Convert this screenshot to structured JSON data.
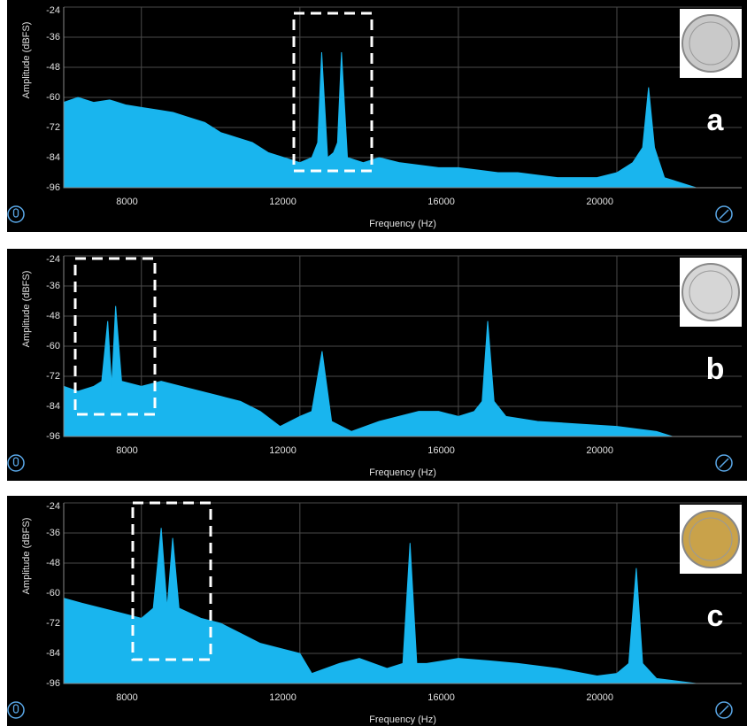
{
  "chart_data": [
    {
      "type": "area",
      "annotation": "a",
      "xlabel": "Frequency (Hz)",
      "ylabel": "Amplitude (dBFS)",
      "grid": true,
      "xlim": [
        6040,
        23150
      ],
      "ylim": [
        -96,
        -24
      ],
      "xticks": [
        8000,
        12000,
        16000,
        20000
      ],
      "yticks": [
        -24,
        -36,
        -48,
        -60,
        -72,
        -84,
        -96
      ],
      "x": [
        6040,
        6400,
        6800,
        7200,
        7600,
        8000,
        8400,
        8800,
        9200,
        9600,
        10000,
        10400,
        10800,
        11200,
        11600,
        12000,
        12300,
        12450,
        12550,
        12700,
        12850,
        12950,
        13050,
        13200,
        13600,
        14000,
        14500,
        15000,
        15500,
        16000,
        16500,
        17000,
        17500,
        18000,
        18500,
        19000,
        19500,
        20000,
        20400,
        20650,
        20800,
        20950,
        21200,
        21600,
        22000,
        22500,
        23150
      ],
      "series": [
        {
          "color": "#19b5ee",
          "values": [
            -62,
            -60,
            -62,
            -61,
            -63,
            -64,
            -65,
            -66,
            -68,
            -70,
            -74,
            -76,
            -78,
            -82,
            -84,
            -86,
            -84,
            -78,
            -42,
            -84,
            -82,
            -78,
            -42,
            -84,
            -86,
            -84,
            -86,
            -87,
            -88,
            -88,
            -89,
            -90,
            -90,
            -91,
            -92,
            -92,
            -92,
            -90,
            -86,
            -80,
            -56,
            -80,
            -92,
            -94,
            -96,
            -96,
            -96
          ]
        }
      ]
    },
    {
      "type": "area",
      "annotation": "b",
      "xlabel": "Frequency (Hz)",
      "ylabel": "Amplitude (dBFS)",
      "grid": true,
      "xlim": [
        6040,
        23150
      ],
      "ylim": [
        -96,
        -24
      ],
      "xticks": [
        8000,
        12000,
        16000,
        20000
      ],
      "yticks": [
        -24,
        -36,
        -48,
        -60,
        -72,
        -84,
        -96
      ],
      "x": [
        6040,
        6400,
        6800,
        7000,
        7150,
        7250,
        7350,
        7500,
        8000,
        8500,
        9000,
        9500,
        10000,
        10500,
        11000,
        11500,
        12000,
        12300,
        12560,
        12800,
        13300,
        14000,
        15000,
        15500,
        16000,
        16400,
        16600,
        16740,
        16900,
        17200,
        18000,
        19000,
        20000,
        20500,
        21000,
        21400,
        22000,
        23150
      ],
      "series": [
        {
          "color": "#19b5ee",
          "values": [
            -76,
            -78,
            -76,
            -74,
            -50,
            -76,
            -44,
            -74,
            -76,
            -74,
            -76,
            -78,
            -80,
            -82,
            -86,
            -92,
            -88,
            -86,
            -62,
            -90,
            -94,
            -90,
            -86,
            -86,
            -88,
            -86,
            -82,
            -50,
            -82,
            -88,
            -90,
            -91,
            -92,
            -93,
            -94,
            -96,
            -96,
            -96
          ]
        }
      ]
    },
    {
      "type": "area",
      "annotation": "c",
      "xlabel": "Frequency (Hz)",
      "ylabel": "Amplitude (dBFS)",
      "grid": true,
      "xlim": [
        6040,
        23150
      ],
      "ylim": [
        -96,
        -24
      ],
      "xticks": [
        8000,
        12000,
        16000,
        20000
      ],
      "yticks": [
        -24,
        -36,
        -48,
        -60,
        -72,
        -84,
        -96
      ],
      "x": [
        6040,
        6500,
        7000,
        7500,
        8000,
        8300,
        8500,
        8650,
        8790,
        8950,
        9500,
        10000,
        10500,
        11000,
        11500,
        12000,
        12300,
        13000,
        13500,
        14200,
        14600,
        14780,
        14950,
        15200,
        16000,
        16800,
        17500,
        18500,
        19500,
        20000,
        20300,
        20490,
        20650,
        21000,
        22000,
        23150
      ],
      "series": [
        {
          "color": "#19b5ee",
          "values": [
            -62,
            -64,
            -66,
            -68,
            -70,
            -66,
            -34,
            -66,
            -38,
            -66,
            -70,
            -72,
            -76,
            -80,
            -82,
            -84,
            -92,
            -88,
            -86,
            -90,
            -88,
            -40,
            -88,
            -88,
            -86,
            -87,
            -88,
            -90,
            -93,
            -92,
            -88,
            -50,
            -88,
            -94,
            -96,
            -96
          ]
        }
      ]
    }
  ]
}
